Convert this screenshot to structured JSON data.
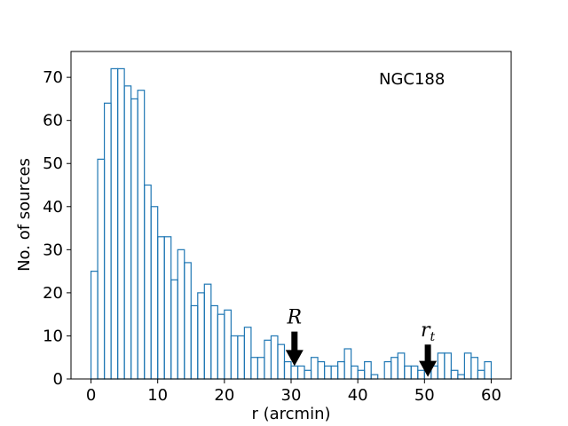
{
  "chart_data": {
    "type": "bar",
    "subtype": "histogram",
    "xlabel": "r (arcmin)",
    "ylabel": "No. of sources",
    "annotation": "NGC188",
    "xlim": [
      -3,
      63
    ],
    "ylim": [
      0,
      76
    ],
    "xticks": [
      0,
      10,
      20,
      30,
      40,
      50,
      60
    ],
    "yticks": [
      0,
      10,
      20,
      30,
      40,
      50,
      60,
      70
    ],
    "bin_width": 1,
    "bin_start": 0,
    "counts": [
      25,
      51,
      64,
      72,
      72,
      68,
      65,
      67,
      45,
      40,
      33,
      33,
      23,
      30,
      27,
      17,
      20,
      22,
      17,
      15,
      16,
      10,
      10,
      12,
      5,
      5,
      9,
      10,
      8,
      4,
      3,
      3,
      2,
      5,
      4,
      3,
      3,
      4,
      7,
      3,
      2,
      4,
      1,
      0,
      4,
      5,
      6,
      3,
      3,
      2,
      4,
      3,
      6,
      6,
      2,
      1,
      6,
      5,
      2,
      4
    ],
    "bar_color": "#1f77b4",
    "markers": [
      {
        "label": "R",
        "subscript": "",
        "x": 30.5,
        "arrow_top": 11,
        "arrow_bottom": 3
      },
      {
        "label": "r",
        "subscript": "t",
        "x": 50.5,
        "arrow_top": 8,
        "arrow_bottom": 0.5
      }
    ]
  }
}
